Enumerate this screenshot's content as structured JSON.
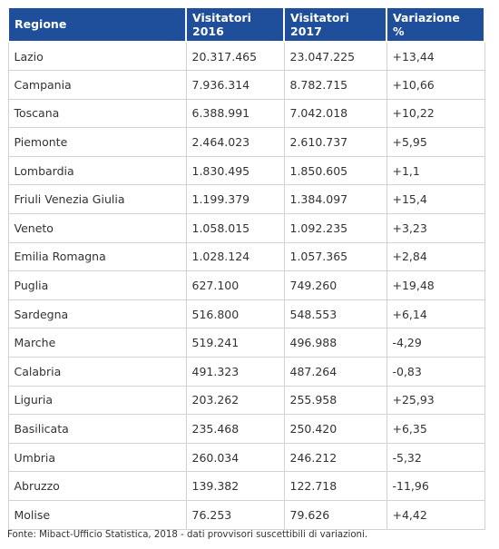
{
  "table": {
    "headers": {
      "region": "Regione",
      "v2016_line1": "Visitatori",
      "v2016_line2": "2016",
      "v2017_line1": "Visitatori",
      "v2017_line2": "2017",
      "var_line1": "Variazione",
      "var_line2": "%"
    },
    "rows": [
      {
        "region": "Lazio",
        "v2016": "20.317.465",
        "v2017": "23.047.225",
        "variation": "+13,44"
      },
      {
        "region": "Campania",
        "v2016": "7.936.314",
        "v2017": "8.782.715",
        "variation": "+10,66"
      },
      {
        "region": "Toscana",
        "v2016": "6.388.991",
        "v2017": "7.042.018",
        "variation": "+10,22"
      },
      {
        "region": "Piemonte",
        "v2016": "2.464.023",
        "v2017": "2.610.737",
        "variation": "+5,95"
      },
      {
        "region": "Lombardia",
        "v2016": "1.830.495",
        "v2017": "1.850.605",
        "variation": "+1,1"
      },
      {
        "region": "Friuli Venezia Giulia",
        "v2016": "1.199.379",
        "v2017": "1.384.097",
        "variation": "+15,4"
      },
      {
        "region": "Veneto",
        "v2016": "1.058.015",
        "v2017": "1.092.235",
        "variation": "+3,23"
      },
      {
        "region": "Emilia Romagna",
        "v2016": "1.028.124",
        "v2017": "1.057.365",
        "variation": "+2,84"
      },
      {
        "region": "Puglia",
        "v2016": "627.100",
        "v2017": "749.260",
        "variation": "+19,48"
      },
      {
        "region": "Sardegna",
        "v2016": "516.800",
        "v2017": "548.553",
        "variation": "+6,14"
      },
      {
        "region": "Marche",
        "v2016": "519.241",
        "v2017": "496.988",
        "variation": "-4,29"
      },
      {
        "region": "Calabria",
        "v2016": "491.323",
        "v2017": "487.264",
        "variation": "-0,83"
      },
      {
        "region": "Liguria",
        "v2016": "203.262",
        "v2017": "255.958",
        "variation": "+25,93"
      },
      {
        "region": "Basilicata",
        "v2016": "235.468",
        "v2017": "250.420",
        "variation": "+6,35"
      },
      {
        "region": "Umbria",
        "v2016": "260.034",
        "v2017": "246.212",
        "variation": "-5,32"
      },
      {
        "region": "Abruzzo",
        "v2016": "139.382",
        "v2017": "122.718",
        "variation": "-11,96"
      },
      {
        "region": "Molise",
        "v2016": "76.253",
        "v2017": "79.626",
        "variation": "+4,42"
      }
    ]
  },
  "source": "Fonte: Mibact-Ufficio Statistica, 2018 - dati provvisori suscettibili di variazioni.",
  "colors": {
    "header_bg": "#1f4e9a",
    "header_text": "#ffffff",
    "cell_border": "#d3d3d3",
    "body_text": "#333333"
  }
}
